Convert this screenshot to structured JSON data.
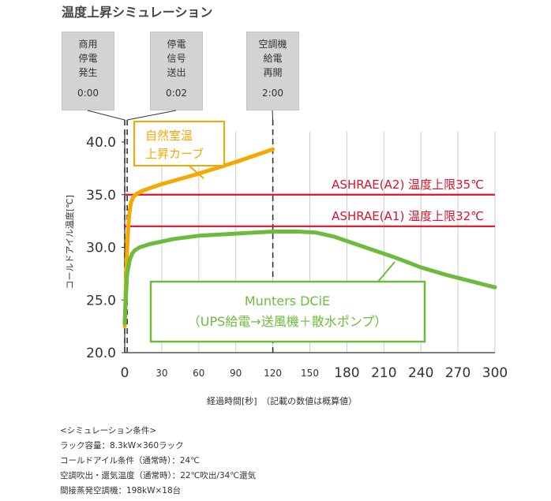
{
  "title": "温度上昇シミュレーション",
  "events": [
    {
      "lines": [
        "商用",
        "停電",
        "発生"
      ],
      "time": "0:00"
    },
    {
      "lines": [
        "停電",
        "信号",
        "送出"
      ],
      "time": "0:02"
    },
    {
      "lines": [
        "空調機",
        "給電",
        "再開"
      ],
      "time": "2:00"
    }
  ],
  "xaxis_title": "経過時間[秒]　（記載の数値は概算値）",
  "conditions": {
    "header": "<シミュレーション条件>",
    "items": [
      "ラック容量：8.3kW×360ラック",
      "コールドアイル条件（通常時）：24℃",
      "空調吹出・還気温度（通常時）：22℃吹出/34℃還気",
      "間接蒸発空調機：198kW×18台"
    ]
  },
  "colors": {
    "orange": "#f5a800",
    "green": "#6dbb3c",
    "red": "#d7142b",
    "grid": "#cccccc",
    "axis": "#333333"
  },
  "chart_data": {
    "type": "line",
    "ylabel": "コールドアイル温度[℃]",
    "ylim": [
      20,
      41
    ],
    "yticks": [
      20,
      25,
      30,
      35,
      40
    ],
    "ytick_labels": [
      "20.0",
      "25.0",
      "30.0",
      "35.0",
      "40.0"
    ],
    "xlim": [
      0,
      300
    ],
    "xticks": [
      0,
      30,
      60,
      90,
      120,
      150,
      180,
      210,
      240,
      270,
      300
    ],
    "xtick_labels": [
      "0",
      "30",
      "60",
      "90",
      "120",
      "150",
      "180",
      "210",
      "240",
      "270",
      "300"
    ],
    "event_lines_x": [
      0,
      2,
      120
    ],
    "thresholds": [
      {
        "label": "ASHRAE(A2) 温度上限35℃",
        "value": 35
      },
      {
        "label": "ASHRAE(A1) 温度上限32℃",
        "value": 32
      }
    ],
    "series": [
      {
        "name": "自然室温上昇カーブ",
        "label_lines": [
          "自然室温",
          "上昇カーブ"
        ],
        "color": "#f5a800",
        "x": [
          0,
          1,
          2,
          3,
          4,
          5,
          7,
          10,
          15,
          30,
          60,
          90,
          120
        ],
        "y": [
          22.5,
          27,
          30,
          32.2,
          33.5,
          34.2,
          34.8,
          35.1,
          35.4,
          36,
          37,
          38.1,
          39.3
        ]
      },
      {
        "name": "Munters DCiE",
        "label_lines": [
          "Munters DCiE",
          "（UPS給電→送風機＋散水ポンプ）"
        ],
        "color": "#6dbb3c",
        "x": [
          0,
          1,
          2,
          4,
          6,
          8,
          12,
          20,
          40,
          60,
          90,
          120,
          140,
          155,
          170,
          180,
          200,
          220,
          240,
          260,
          280,
          300
        ],
        "y": [
          22.8,
          25.5,
          27.5,
          28.8,
          29.4,
          29.7,
          30,
          30.3,
          30.8,
          31.1,
          31.3,
          31.5,
          31.5,
          31.4,
          31,
          30.6,
          29.8,
          29,
          28.1,
          27.4,
          26.8,
          26.2
        ]
      }
    ]
  }
}
